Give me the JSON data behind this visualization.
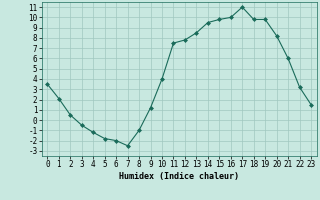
{
  "x": [
    0,
    1,
    2,
    3,
    4,
    5,
    6,
    7,
    8,
    9,
    10,
    11,
    12,
    13,
    14,
    15,
    16,
    17,
    18,
    19,
    20,
    21,
    22,
    23
  ],
  "y": [
    3.5,
    2.1,
    0.5,
    -0.5,
    -1.2,
    -1.8,
    -2.0,
    -2.5,
    -1.0,
    1.2,
    4.0,
    7.5,
    7.8,
    8.5,
    9.5,
    9.8,
    10.0,
    11.0,
    9.8,
    9.8,
    8.2,
    6.0,
    3.2,
    1.5
  ],
  "line_color": "#1a6b5a",
  "marker": "D",
  "marker_size": 2,
  "bg_color": "#c8e8e0",
  "grid_color": "#a0c8c0",
  "xlabel": "Humidex (Indice chaleur)",
  "ylim": [
    -3.5,
    11.5
  ],
  "xlim": [
    -0.5,
    23.5
  ],
  "yticks": [
    -3,
    -2,
    -1,
    0,
    1,
    2,
    3,
    4,
    5,
    6,
    7,
    8,
    9,
    10,
    11
  ],
  "xticks": [
    0,
    1,
    2,
    3,
    4,
    5,
    6,
    7,
    8,
    9,
    10,
    11,
    12,
    13,
    14,
    15,
    16,
    17,
    18,
    19,
    20,
    21,
    22,
    23
  ],
  "label_fontsize": 6,
  "tick_fontsize": 5.5
}
